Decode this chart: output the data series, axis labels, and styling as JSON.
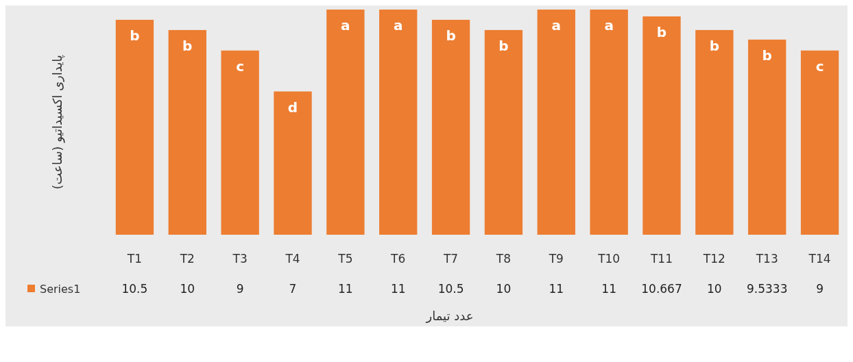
{
  "chart_data": {
    "type": "bar",
    "ylabel": "پایداری اکسیداتیو (ساعت)",
    "xlabel": "عدد تیمار",
    "categories": [
      "T1",
      "T2",
      "T3",
      "T4",
      "T5",
      "T6",
      "T7",
      "T8",
      "T9",
      "T10",
      "T11",
      "T12",
      "T13",
      "T14"
    ],
    "series": [
      {
        "name": "Series1",
        "color": "#ed7d31",
        "values": [
          10.5,
          10,
          9,
          7,
          11,
          11,
          10.5,
          10,
          11,
          11,
          10.667,
          10,
          9.5333,
          9
        ]
      }
    ],
    "data_labels": true,
    "legend": "left",
    "annotations": [
      {
        "text": "b",
        "x": "T1",
        "y": 10.5
      },
      {
        "text": "b",
        "x": "T2",
        "y": 10
      },
      {
        "text": "c",
        "x": "T3",
        "y": 9
      },
      {
        "text": "d",
        "x": "T4",
        "y": 7
      },
      {
        "text": "a",
        "x": "T5",
        "y": 11
      },
      {
        "text": "a",
        "x": "T6",
        "y": 11
      },
      {
        "text": "b",
        "x": "T7",
        "y": 10.5
      },
      {
        "text": "b",
        "x": "T8",
        "y": 10
      },
      {
        "text": "a",
        "x": "T9",
        "y": 11
      },
      {
        "text": "a",
        "x": "T10",
        "y": 11
      },
      {
        "text": "b",
        "x": "T11",
        "y": 10.667
      },
      {
        "text": "b",
        "x": "T12",
        "y": 10
      },
      {
        "text": "b",
        "x": "T13",
        "y": 9.5333
      },
      {
        "text": "c",
        "x": "T14",
        "y": 9
      }
    ]
  }
}
